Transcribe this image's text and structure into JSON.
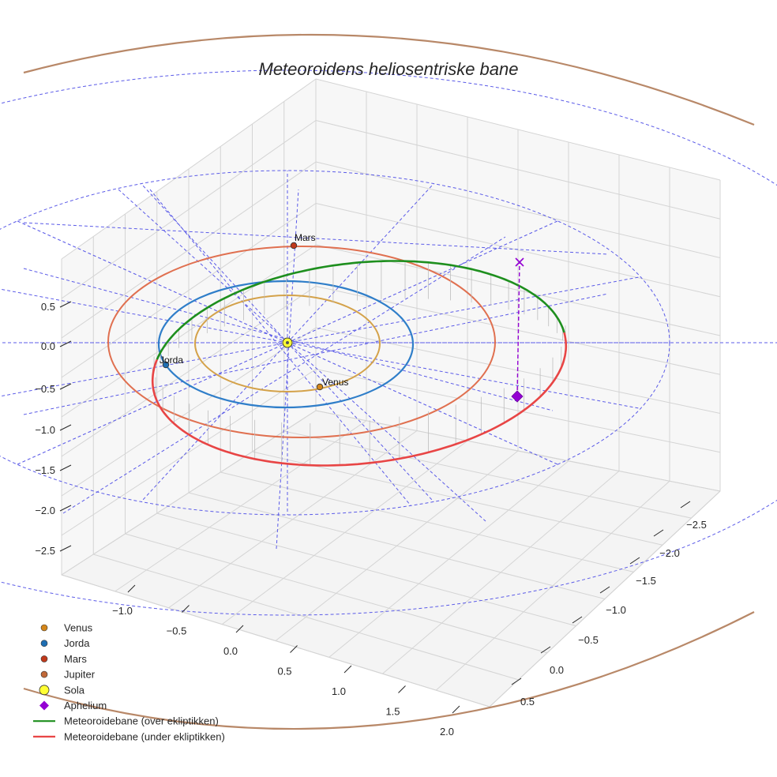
{
  "chart_data": {
    "type": "line",
    "projection": "3d",
    "title": "Meteoroidens heliosentriske bane",
    "x_ticks": [
      "−1.0",
      "−0.5",
      "0.0",
      "0.5",
      "1.0",
      "1.5",
      "2.0"
    ],
    "y_ticks": [
      "−2.5",
      "−2.0",
      "−1.5",
      "−1.0",
      "−0.5",
      "0.0",
      "0.5"
    ],
    "z_ticks": [
      "0.5",
      "0.0",
      "−0.5",
      "−1.0",
      "−1.5",
      "−2.0",
      "−2.5"
    ],
    "grid": true,
    "legend_position": "bottom-left",
    "planets": [
      {
        "name": "Venus",
        "label": "Venus",
        "color": "#d4a24a",
        "marker": "#d4861a"
      },
      {
        "name": "Jorda",
        "label": "Jorda",
        "color": "#2f7ec9",
        "marker": "#1f6fb3"
      },
      {
        "name": "Mars",
        "label": "Mars",
        "color": "#e07050",
        "marker": "#c0391b"
      },
      {
        "name": "Jupiter",
        "label": "",
        "color": "#b88868",
        "marker": "#c06838"
      }
    ],
    "sun": {
      "name": "Sola",
      "color": "#ffff33"
    },
    "aphelium": {
      "name": "Aphelium",
      "color": "#9400d3"
    },
    "series": [
      {
        "name": "Meteoroidebane (over ekliptikken)",
        "color": "#1e8f1e"
      },
      {
        "name": "Meteoroidebane (under ekliptikken)",
        "color": "#e84545"
      }
    ]
  },
  "legend": [
    {
      "label": "Venus",
      "kind": "dot",
      "color": "#d4861a"
    },
    {
      "label": "Jorda",
      "kind": "dot",
      "color": "#1f6fb3"
    },
    {
      "label": "Mars",
      "kind": "dot",
      "color": "#c0391b"
    },
    {
      "label": "Jupiter",
      "kind": "dot",
      "color": "#c06838"
    },
    {
      "label": "Sola",
      "kind": "sun",
      "color": "#ffff33"
    },
    {
      "label": "Aphelium",
      "kind": "diamond",
      "color": "#9400d3"
    },
    {
      "label": "Meteoroidebane (over ekliptikken)",
      "kind": "line",
      "color": "#1e8f1e"
    },
    {
      "label": "Meteoroidebane (under ekliptikken)",
      "kind": "line",
      "color": "#e84545"
    }
  ]
}
